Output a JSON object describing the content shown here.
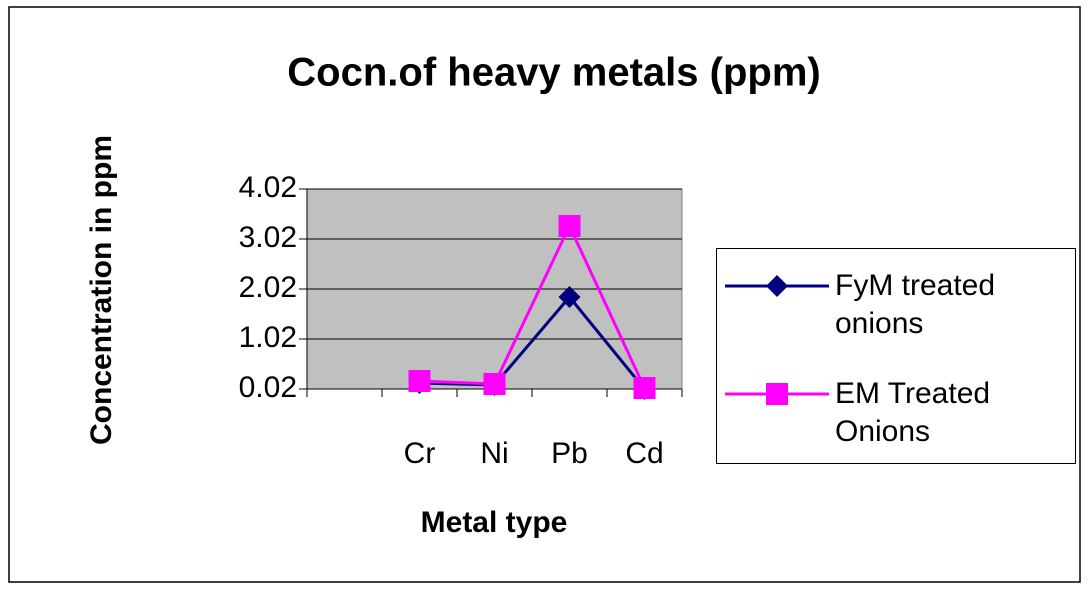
{
  "chart_data": {
    "type": "line",
    "title": "Cocn.of heavy metals (ppm)",
    "x_label": "Metal type",
    "y_label": "Concentration in ppm",
    "categories": [
      null,
      "Cr",
      "Ni",
      "Pb",
      "Cd"
    ],
    "series": [
      {
        "name": "FyM treated onions",
        "color": "#000080",
        "marker": "diamond",
        "values": [
          null,
          0.14,
          0.1,
          1.86,
          0.02
        ]
      },
      {
        "name": "EM Treated Onions",
        "color": "#ff00ff",
        "marker": "square",
        "values": [
          null,
          0.18,
          0.12,
          3.28,
          0.04
        ]
      }
    ],
    "ylim": [
      0.02,
      4.02
    ],
    "yticks": [
      0.02,
      1.02,
      2.02,
      3.02,
      4.02
    ],
    "grid": true,
    "legend": "right"
  }
}
